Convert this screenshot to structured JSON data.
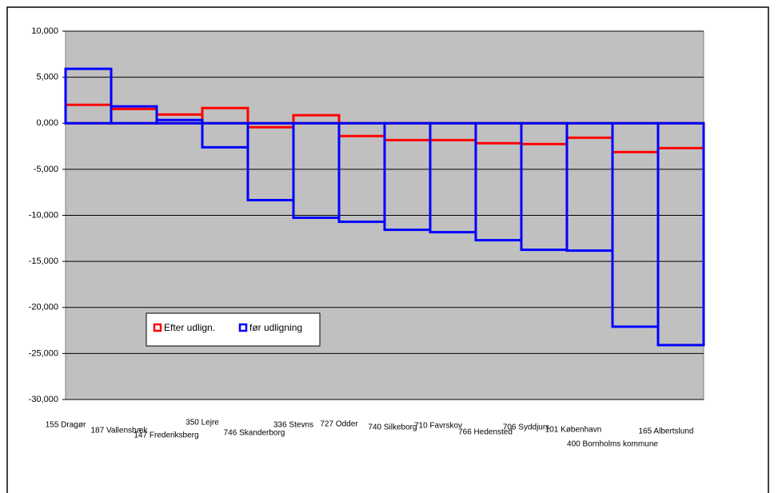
{
  "chart_data": {
    "type": "bar",
    "categories": [
      "155 Dragør",
      "187 Vallensbæk",
      "147 Frederiksberg",
      "350 Lejre",
      "746 Skanderborg",
      "336 Stevns",
      "727 Odder",
      "740 Silkeborg",
      "710 Favrskov",
      "766 Hedensted",
      "706 Syddjurs",
      "101 København",
      "400 Bornholms kommune",
      "165 Albertslund"
    ],
    "series": [
      {
        "name": "Efter udlign.",
        "color": "#ff0000",
        "values": [
          2000,
          1550,
          950,
          1650,
          -430,
          870,
          -1390,
          -1830,
          -1830,
          -2170,
          -2260,
          -1570,
          -3130,
          -2700
        ]
      },
      {
        "name": "før udligning",
        "color": "#0000ff",
        "values": [
          5910,
          1830,
          350,
          -2610,
          -8350,
          -10260,
          -10700,
          -11570,
          -11830,
          -12700,
          -13740,
          -13830,
          -22090,
          -24090
        ]
      }
    ],
    "ylim": [
      -30000,
      10000
    ],
    "yticks": [
      {
        "value": -30000,
        "label": "-30,000"
      },
      {
        "value": -25000,
        "label": "-25,000"
      },
      {
        "value": -20000,
        "label": "-20,000"
      },
      {
        "value": -15000,
        "label": "-15,000"
      },
      {
        "value": -10000,
        "label": "-10,000"
      },
      {
        "value": -5000,
        "label": "-5,000"
      },
      {
        "value": 0,
        "label": "0,000"
      },
      {
        "value": 5000,
        "label": "5,000"
      },
      {
        "value": 10000,
        "label": "10,000"
      }
    ],
    "grid": true
  }
}
